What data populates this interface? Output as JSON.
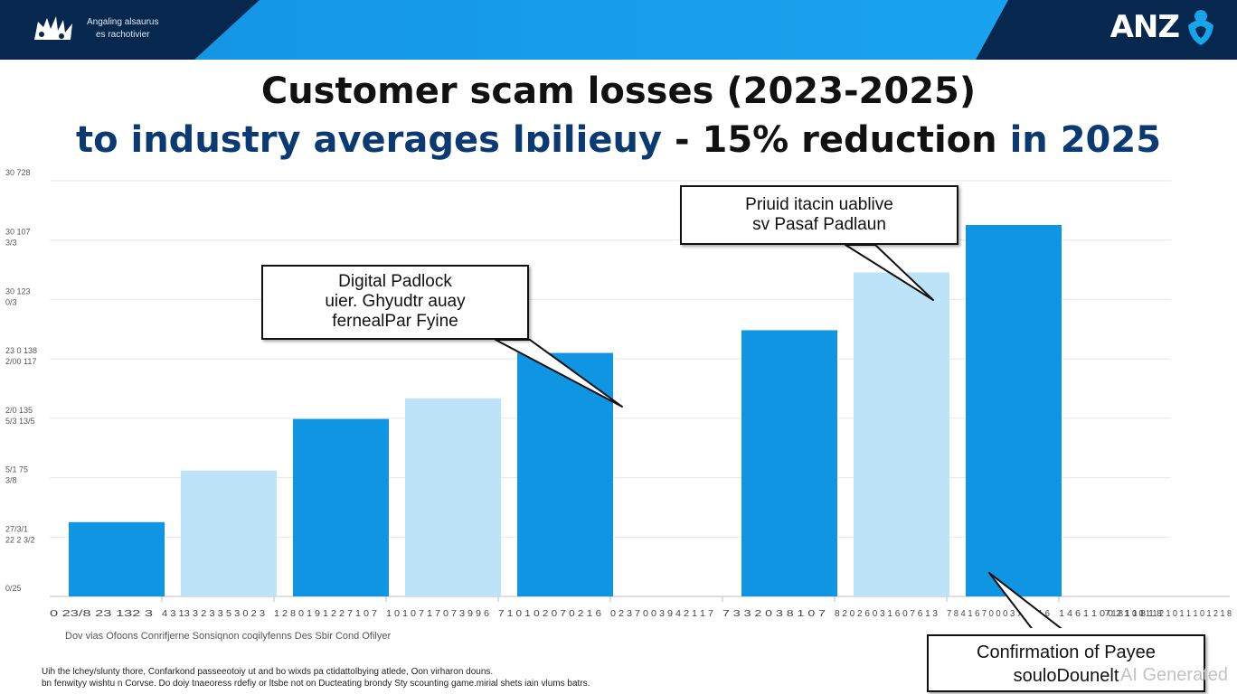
{
  "header": {
    "left_text": [
      "Angaling alsaurus",
      "es rachotivier"
    ],
    "brand": "ANZ"
  },
  "title": {
    "line1": "Customer scam losses (2023-2025)",
    "line2_a": "to industry averages",
    "line2_b": "lɒilieuy",
    "line2_c": "- 15% reduction",
    "line2_d": "in 2025"
  },
  "colors": {
    "header_navy": "#06284f",
    "stripe_blue": "#1496e4",
    "bar_dark": "#0f95e2",
    "bar_light": "#bde3f8",
    "title_navy": "#0b3a73"
  },
  "chart_data": {
    "type": "bar",
    "title": "Customer scam losses (2023-2025)",
    "ylim": [
      0,
      9
    ],
    "y_tick_labels": [
      [
        "0/25",
        ""
      ],
      [
        "27/3/1",
        "22 2 3/2"
      ],
      [
        "5/1 75",
        "3/8"
      ],
      [
        "2/0 135",
        "5/3 13/5"
      ],
      [
        "23 0 138",
        "2/00 117"
      ],
      [
        "30 123",
        "0/3"
      ],
      [
        "30 107",
        "3/3"
      ],
      [
        "30 728",
        ""
      ]
    ],
    "categories": [
      "0 23/8 23 132 3",
      "4 3 13 3 2 3 3 5 3 0 2 3",
      "1 2 8 0 1 9 1 2 2 7 1 0 7",
      "1 0 1 0 7 1 7 0 7 3 9 9 6",
      "7 1 0 1 0 2 0 7 0 2 1 6",
      "0 2 3 7 0 0 3 9 4 2 1 1 7",
      "7 3 3 2 0 3 8 1 0 7",
      "8 2 0 2 6 0 3 1 6 0 7 6 1 3",
      "7 8 4 1 6 7 0 0 0 3 7 9 9 1 6",
      "1 4 6 1 1 0 0 2 1 1 8 1 8"
    ],
    "extra_tick_labels": [
      "7 1 8 1 0 0 1 1 2 1 0 1 1 1 0 1 2 1 8"
    ],
    "values": [
      1.8,
      3.05,
      4.3,
      4.8,
      5.9,
      null,
      6.45,
      7.85,
      9.0,
      null
    ],
    "bar_shades": [
      "dark",
      "light",
      "dark",
      "light",
      "dark",
      null,
      "dark",
      "light",
      "dark",
      null
    ],
    "legend_text": "Dov vias Ofoons Conrifjerne Sonsiqnon coqilyfenns Des Sbir Cond Ofilyer",
    "grid": true,
    "annotations": [
      {
        "lines": [
          "Digital Padlock",
          "uier. Ghyudtr auay",
          "fernealPar Fyine"
        ],
        "points_to_bar": 4
      },
      {
        "lines": [
          "Priuid itacin uablive",
          "sv Pasaf Padlaun"
        ],
        "points_to_bar": 7
      },
      {
        "lines": [
          "Confirmation of Payee",
          "souloDounelt"
        ],
        "points_to_bar": 8
      }
    ]
  },
  "footnotes": [
    "Uih the lchey/slunty thore, Confarkond passeeotoiy ut and bo wixds pa ctidattolbying atlede, Oon virharon douns.",
    "bn fenwityy wishtu n Corvse. Do doiy tnaeoress rdefiy or ltsbe not on Ducteating brondy Sty scounting game.mirial shets iain vlums batrs."
  ],
  "watermark": "AI Generated"
}
